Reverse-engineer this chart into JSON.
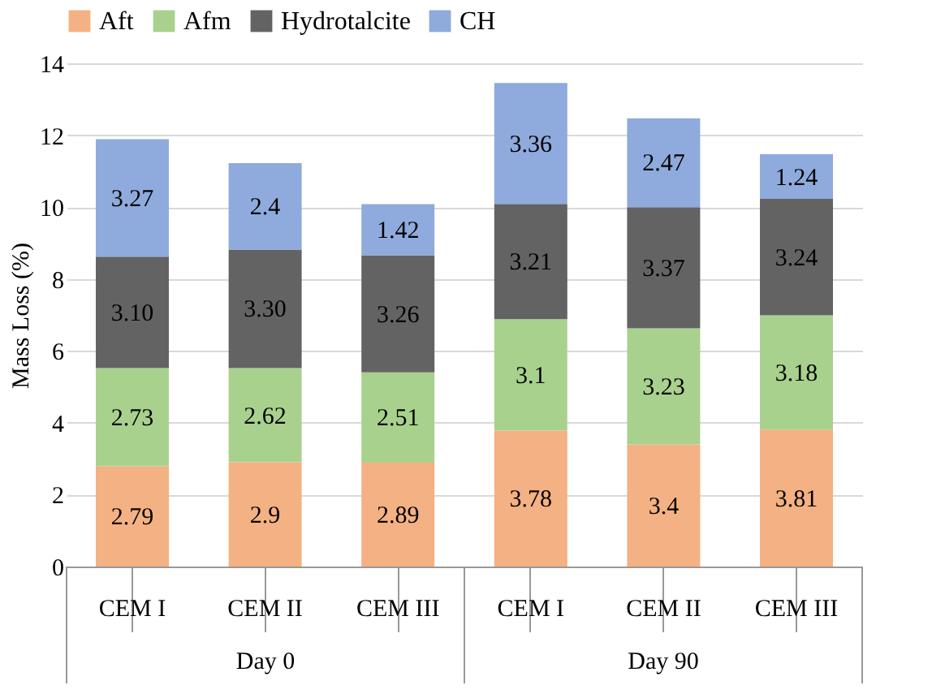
{
  "chart_data": {
    "type": "bar",
    "stacked": true,
    "ylabel": "Mass Loss (%)",
    "categories": [
      "CEM I",
      "CEM II",
      "CEM III",
      "CEM I",
      "CEM II",
      "CEM III"
    ],
    "series": [
      {
        "name": "Aft",
        "color": "#f4b183",
        "values": [
          2.79,
          2.9,
          2.89,
          3.78,
          3.4,
          3.81
        ],
        "value_labels": [
          "2.79",
          "2.9",
          "2.89",
          "3.78",
          "3.4",
          "3.81"
        ]
      },
      {
        "name": "Afm",
        "color": "#a9d18e",
        "values": [
          2.73,
          2.62,
          2.51,
          3.1,
          3.23,
          3.18
        ],
        "value_labels": [
          "2.73",
          "2.62",
          "2.51",
          "3.1",
          "3.23",
          "3.18"
        ]
      },
      {
        "name": "Hydrotalcite",
        "color": "#636363",
        "values": [
          3.1,
          3.3,
          3.26,
          3.21,
          3.37,
          3.24
        ],
        "value_labels": [
          "3.10",
          "3.30",
          "3.26",
          "3.21",
          "3.37",
          "3.24"
        ]
      },
      {
        "name": "CH",
        "color": "#8faadc",
        "values": [
          3.27,
          2.4,
          1.42,
          3.36,
          2.47,
          1.24
        ],
        "value_labels": [
          "3.27",
          "2.4",
          "1.42",
          "3.36",
          "2.47",
          "1.24"
        ]
      }
    ],
    "ylim": [
      0,
      14
    ],
    "yticks": [
      0,
      2,
      4,
      6,
      8,
      10,
      12,
      14
    ],
    "grid": "y",
    "legend": "top",
    "annotations": [
      "Day 0",
      "Day 90"
    ]
  }
}
